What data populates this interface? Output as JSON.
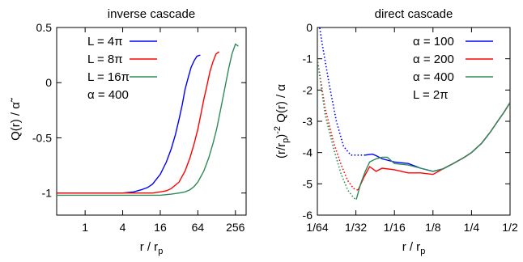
{
  "chart_data": [
    {
      "type": "line",
      "title": "inverse cascade",
      "xlabel": "r / r",
      "xlabel_sub": "p",
      "ylabel": "Q(r) / α̃",
      "xscale": "log2",
      "xlim": [
        0.35,
        380
      ],
      "ylim": [
        -1.2,
        0.5
      ],
      "xticks": [
        1,
        4,
        16,
        64,
        256
      ],
      "xtick_labels": [
        "1",
        "4",
        "16",
        "64",
        "256"
      ],
      "yticks": [
        -1,
        -0.5,
        0,
        0.5
      ],
      "ytick_labels": [
        "-1",
        "-0.5",
        "0",
        "0.5"
      ],
      "legend_position": "top-left",
      "series": [
        {
          "name": "L =  4π",
          "color": "#0000ff",
          "x": [
            0.35,
            1,
            2,
            4,
            6,
            8,
            10,
            12,
            16,
            20,
            24,
            28,
            32,
            36,
            40,
            45,
            50,
            56,
            62,
            70
          ],
          "y": [
            -1.0,
            -1.0,
            -1.0,
            -1.0,
            -0.99,
            -0.97,
            -0.95,
            -0.92,
            -0.83,
            -0.72,
            -0.6,
            -0.47,
            -0.33,
            -0.2,
            -0.06,
            0.05,
            0.14,
            0.2,
            0.24,
            0.25
          ]
        },
        {
          "name": "L =  8π",
          "color": "#ff0000",
          "x": [
            0.35,
            1,
            4,
            8,
            12,
            16,
            20,
            24,
            32,
            40,
            48,
            56,
            64,
            72,
            80,
            90,
            100,
            112,
            125,
            140
          ],
          "y": [
            -1.0,
            -1.0,
            -1.0,
            -1.0,
            -1.0,
            -0.99,
            -0.98,
            -0.96,
            -0.9,
            -0.8,
            -0.68,
            -0.55,
            -0.42,
            -0.28,
            -0.15,
            -0.02,
            0.1,
            0.19,
            0.26,
            0.28
          ]
        },
        {
          "name": "L = 16π",
          "color": "#2e8b57",
          "x": [
            0.35,
            1,
            4,
            8,
            16,
            24,
            32,
            40,
            48,
            56,
            64,
            80,
            96,
            112,
            128,
            144,
            160,
            180,
            200,
            225,
            256,
            285
          ],
          "y": [
            -1.02,
            -1.02,
            -1.02,
            -1.02,
            -1.02,
            -1.01,
            -1.0,
            -0.99,
            -0.97,
            -0.94,
            -0.9,
            -0.8,
            -0.68,
            -0.55,
            -0.42,
            -0.28,
            -0.15,
            0.0,
            0.13,
            0.26,
            0.35,
            0.33
          ]
        }
      ],
      "annotations": [
        "α = 400"
      ]
    },
    {
      "type": "line",
      "title": "direct cascade",
      "xlabel": "r / r",
      "xlabel_sub": "p",
      "ylabel": "(r/r",
      "ylabel_sub": "p",
      "ylabel_sup": "-2",
      "ylabel_rest": " Q(r) / α",
      "xscale": "log2",
      "xlim": [
        0.015625,
        0.5
      ],
      "ylim": [
        -6,
        0
      ],
      "xticks": [
        0.015625,
        0.03125,
        0.0625,
        0.125,
        0.25,
        0.5
      ],
      "xtick_labels": [
        "1/64",
        "1/32",
        "1/16",
        "1/8",
        "1/4",
        "1/2"
      ],
      "yticks": [
        -6,
        -5,
        -4,
        -3,
        -2,
        -1,
        0
      ],
      "ytick_labels": [
        "-6",
        "-5",
        "-4",
        "-3",
        "-2",
        "-1",
        "0"
      ],
      "legend_position": "top-right",
      "series": [
        {
          "name": "α = 100",
          "color": "#0000ff",
          "dotted_x": [
            0.0156,
            0.017,
            0.0195,
            0.022,
            0.025,
            0.0285,
            0.0333,
            0.037
          ],
          "dotted_y": [
            0.5,
            -0.5,
            -1.9,
            -3.0,
            -3.8,
            -4.08,
            -4.08,
            -4.08
          ],
          "x": [
            0.037,
            0.042,
            0.045,
            0.05,
            0.0625,
            0.08,
            0.1,
            0.125,
            0.15,
            0.18,
            0.22,
            0.25,
            0.3,
            0.35,
            0.4,
            0.45,
            0.5
          ],
          "y": [
            -4.08,
            -4.05,
            -4.1,
            -4.2,
            -4.3,
            -4.35,
            -4.5,
            -4.6,
            -4.52,
            -4.35,
            -4.15,
            -4.0,
            -3.7,
            -3.35,
            -3.0,
            -2.7,
            -2.4
          ]
        },
        {
          "name": "α = 200",
          "color": "#ff0000",
          "dotted_x": [
            0.0156,
            0.018,
            0.021,
            0.024,
            0.027,
            0.03,
            0.0325
          ],
          "dotted_y": [
            -1.0,
            -2.6,
            -3.7,
            -4.4,
            -4.9,
            -5.15,
            -5.2
          ],
          "x": [
            0.0325,
            0.036,
            0.04,
            0.045,
            0.05,
            0.0625,
            0.08,
            0.1,
            0.125,
            0.15,
            0.18,
            0.22,
            0.25,
            0.3,
            0.35,
            0.4,
            0.45,
            0.5
          ],
          "y": [
            -5.2,
            -4.8,
            -4.45,
            -4.6,
            -4.5,
            -4.55,
            -4.65,
            -4.65,
            -4.7,
            -4.52,
            -4.35,
            -4.15,
            -4.0,
            -3.7,
            -3.35,
            -3.0,
            -2.7,
            -2.4
          ]
        },
        {
          "name": "α = 400",
          "color": "#2e8b57",
          "dotted_x": [
            0.0156,
            0.018,
            0.021,
            0.024,
            0.027,
            0.03,
            0.0315
          ],
          "dotted_y": [
            -1.0,
            -2.8,
            -3.9,
            -4.7,
            -5.2,
            -5.45,
            -5.5
          ],
          "x": [
            0.0315,
            0.034,
            0.037,
            0.04,
            0.045,
            0.05,
            0.055,
            0.0625,
            0.08,
            0.1,
            0.125,
            0.15,
            0.18,
            0.22,
            0.25,
            0.3,
            0.35,
            0.4,
            0.45,
            0.5
          ],
          "y": [
            -5.5,
            -5.0,
            -4.6,
            -4.3,
            -4.2,
            -4.15,
            -4.15,
            -4.35,
            -4.4,
            -4.5,
            -4.6,
            -4.52,
            -4.35,
            -4.15,
            -4.0,
            -3.7,
            -3.35,
            -3.0,
            -2.7,
            -2.4
          ]
        }
      ],
      "annotations": [
        "L = 2π"
      ]
    }
  ]
}
